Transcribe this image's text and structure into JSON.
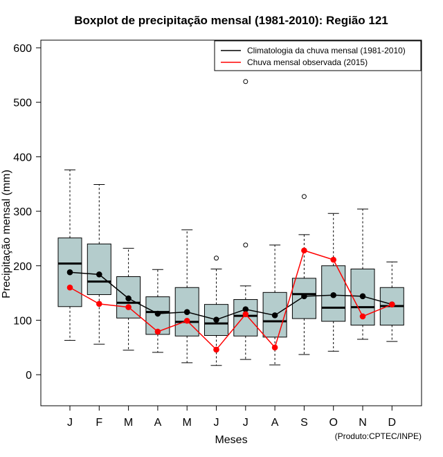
{
  "chart_data": {
    "type": "boxplot",
    "title": "Boxplot de precipitação mensal (1981-2010): Região 121",
    "xlabel": "Meses",
    "ylabel": "Precipitação mensal (mm)",
    "credit": "(Produto:CPTEC/INPE)",
    "ylim": [
      -57,
      614
    ],
    "yticks": [
      0,
      100,
      200,
      300,
      400,
      500,
      600
    ],
    "categories": [
      "J",
      "F",
      "M",
      "A",
      "M",
      "J",
      "J",
      "A",
      "S",
      "O",
      "N",
      "D"
    ],
    "boxes": [
      {
        "min": 63,
        "q1": 125,
        "median": 204,
        "q3": 251,
        "max": 376,
        "outliers": []
      },
      {
        "min": 56,
        "q1": 147,
        "median": 171,
        "q3": 240,
        "max": 349,
        "outliers": []
      },
      {
        "min": 45,
        "q1": 104,
        "median": 132,
        "q3": 180,
        "max": 232,
        "outliers": []
      },
      {
        "min": 41,
        "q1": 74,
        "median": 115,
        "q3": 143,
        "max": 193,
        "outliers": []
      },
      {
        "min": 22,
        "q1": 71,
        "median": 97,
        "q3": 160,
        "max": 266,
        "outliers": []
      },
      {
        "min": 17,
        "q1": 72,
        "median": 94,
        "q3": 129,
        "max": 194,
        "outliers": [
          214
        ]
      },
      {
        "min": 28,
        "q1": 71,
        "median": 108,
        "q3": 138,
        "max": 163,
        "outliers": [
          238,
          538
        ]
      },
      {
        "min": 18,
        "q1": 69,
        "median": 98,
        "q3": 151,
        "max": 238,
        "outliers": []
      },
      {
        "min": 37,
        "q1": 103,
        "median": 148,
        "q3": 177,
        "max": 257,
        "outliers": [
          327
        ]
      },
      {
        "min": 43,
        "q1": 98,
        "median": 123,
        "q3": 200,
        "max": 296,
        "outliers": []
      },
      {
        "min": 65,
        "q1": 91,
        "median": 124,
        "q3": 194,
        "max": 304,
        "outliers": []
      },
      {
        "min": 61,
        "q1": 91,
        "median": 126,
        "q3": 160,
        "max": 207,
        "outliers": []
      }
    ],
    "series": [
      {
        "name": "Climatologia da chuva mensal (1981-2010)",
        "color": "#000000",
        "values": [
          188,
          184,
          140,
          112,
          115,
          101,
          120,
          109,
          144,
          146,
          144,
          129
        ]
      },
      {
        "name": "Chuva mensal observada (2015)",
        "color": "#ff0000",
        "values": [
          160,
          130,
          124,
          79,
          99,
          46,
          111,
          50,
          228,
          211,
          107,
          129
        ]
      }
    ],
    "box_fill": "#b4cccc",
    "legend_position": "top-right"
  }
}
